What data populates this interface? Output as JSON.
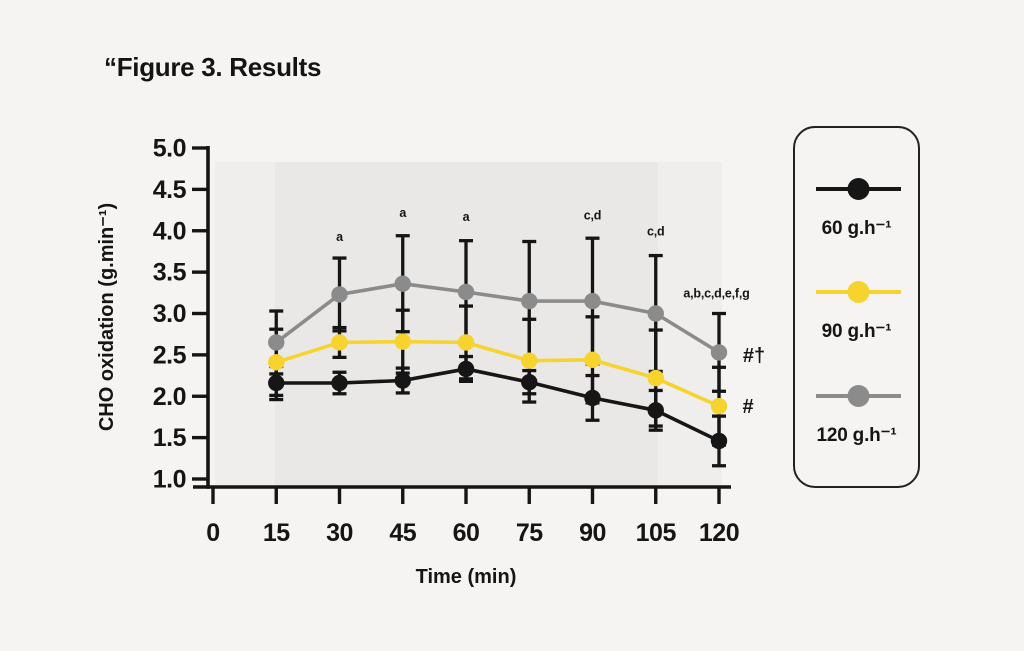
{
  "page": {
    "background": "#f5f4f2",
    "title": "“Figure 3. Results"
  },
  "palette": {
    "text": "#151515",
    "axis": "#151515",
    "error_bar": "#151515",
    "band_outer": "#efeeec",
    "band_inner": "#e9e8e6",
    "legend_border": "#222222"
  },
  "chart_data": {
    "type": "line",
    "title": "Figure 3. Results",
    "xlabel": "Time (min)",
    "ylabel": "CHO oxidation (g.min⁻¹)",
    "x": [
      15,
      30,
      45,
      60,
      75,
      90,
      105,
      120
    ],
    "xticks": [
      0,
      15,
      30,
      45,
      60,
      75,
      90,
      105,
      120
    ],
    "yticks": [
      5.0,
      4.5,
      4.0,
      3.5,
      3.0,
      2.5,
      2.0,
      1.5,
      1.0
    ],
    "xlim": [
      0,
      120
    ],
    "ylim": [
      1.0,
      5.0
    ],
    "grid": false,
    "legend_position": "right",
    "series": [
      {
        "name": "60 g.h⁻¹",
        "slug": "60-gh",
        "color": "#161616",
        "values": [
          2.16,
          2.16,
          2.19,
          2.33,
          2.17,
          1.98,
          1.83,
          1.46
        ],
        "errors": [
          0.2,
          0.13,
          0.15,
          0.15,
          0.14,
          0.27,
          0.24,
          0.3
        ]
      },
      {
        "name": "90 g.h⁻¹",
        "slug": "90-gh",
        "color": "#f6d32f",
        "values": [
          2.41,
          2.65,
          2.66,
          2.65,
          2.43,
          2.44,
          2.22,
          1.88
        ],
        "errors": [
          0.4,
          0.18,
          0.38,
          0.44,
          0.5,
          0.52,
          0.58,
          0.47
        ]
      },
      {
        "name": "120 g.h⁻¹",
        "slug": "120-gh",
        "color": "#8b8b8b",
        "values": [
          2.65,
          3.23,
          3.36,
          3.26,
          3.15,
          3.15,
          3.0,
          2.53
        ],
        "errors": [
          0.38,
          0.44,
          0.58,
          0.62,
          0.72,
          0.76,
          0.7,
          0.47
        ]
      }
    ],
    "annotations": [
      {
        "text": "a",
        "t": 30,
        "v": 3.93,
        "kind": "letters"
      },
      {
        "text": "a",
        "t": 45,
        "v": 4.22,
        "kind": "letters"
      },
      {
        "text": "a",
        "t": 60,
        "v": 4.17,
        "kind": "letters"
      },
      {
        "text": "c,d",
        "t": 90,
        "v": 4.19,
        "kind": "letters"
      },
      {
        "text": "c,d",
        "t": 105,
        "v": 4.0,
        "kind": "letters"
      },
      {
        "text": "a,b,c,d,e,f,g",
        "t": 119.4,
        "v": 3.25,
        "kind": "letters"
      },
      {
        "text": "#†",
        "t": 128.3,
        "v": 2.5,
        "kind": "symbol"
      },
      {
        "text": "#",
        "t": 126.9,
        "v": 1.88,
        "kind": "symbol"
      }
    ]
  }
}
